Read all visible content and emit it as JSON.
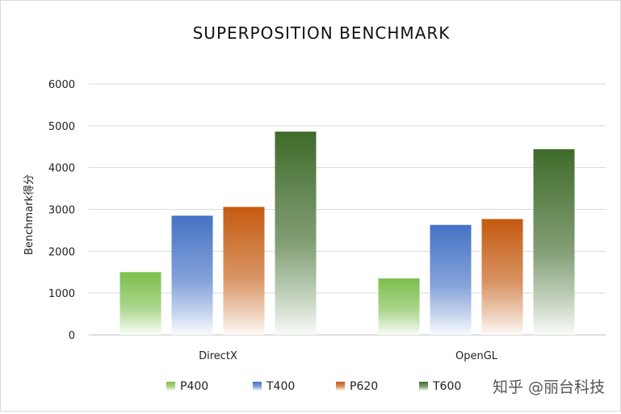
{
  "chart_data": {
    "type": "bar",
    "title": "SUPERPOSITION BENCHMARK",
    "ylabel": "Benchmark得分",
    "xlabel": "",
    "ylim": [
      0,
      6000
    ],
    "yticks": [
      0,
      1000,
      2000,
      3000,
      4000,
      5000,
      6000
    ],
    "ytick_labels": [
      "0",
      "1000",
      "2000",
      "3000",
      "4000",
      "5000",
      "6000"
    ],
    "grid": true,
    "legend_position": "bottom",
    "categories": [
      "DirectX",
      "OpenGL"
    ],
    "series": [
      {
        "name": "P400",
        "values": [
          1500,
          1350
        ],
        "color": "#7cbf4c"
      },
      {
        "name": "T400",
        "values": [
          2850,
          2630
        ],
        "color": "#4472c4"
      },
      {
        "name": "P620",
        "values": [
          3060,
          2770
        ],
        "color": "#c55a11"
      },
      {
        "name": "T600",
        "values": [
          4860,
          4440
        ],
        "color": "#3f6b2a"
      }
    ]
  },
  "watermark": "知乎 @丽台科技"
}
